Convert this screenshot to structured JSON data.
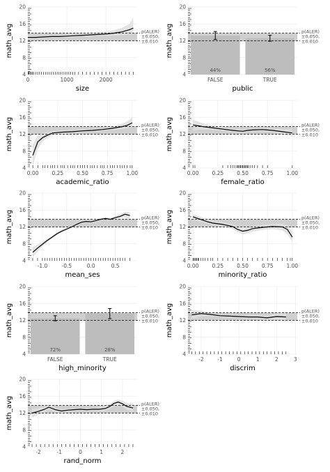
{
  "annotation": [
    "p(ALER)",
    "±0.050,",
    "±0.010"
  ],
  "band": {
    "lo": 12.0,
    "hi": 13.8,
    "ref": 13.0
  },
  "colors": {
    "band": "#c7c7c7",
    "ci": "#dedede",
    "bar": "#bdbdbd",
    "line": "#000000",
    "grid": "#ececec"
  },
  "chart_data": [
    {
      "type": "line",
      "id": "size",
      "xlabel": "size",
      "ylabel": "math_avg",
      "xlim": [
        0,
        2800
      ],
      "ylim": [
        4,
        20
      ],
      "xticks": [
        0,
        1000,
        2000
      ],
      "xticklabels": [
        "0",
        "1000",
        "2000"
      ],
      "yticks": [
        4,
        8,
        12,
        16,
        20
      ],
      "yticklabels": [
        "4",
        "8",
        "12",
        "16",
        "20"
      ],
      "x": [
        0,
        200,
        400,
        600,
        800,
        1000,
        1200,
        1400,
        1600,
        1800,
        2000,
        2200,
        2400,
        2600,
        2700
      ],
      "y": [
        12.8,
        12.8,
        12.9,
        13.0,
        13.0,
        13.1,
        13.2,
        13.3,
        13.4,
        13.5,
        13.6,
        13.8,
        14.1,
        14.6,
        15.0
      ],
      "ci_lo": [
        12.4,
        12.5,
        12.6,
        12.7,
        12.7,
        12.8,
        12.9,
        13.0,
        13.0,
        13.1,
        13.1,
        13.2,
        13.3,
        13.5,
        13.6
      ],
      "ci_hi": [
        13.3,
        13.2,
        13.2,
        13.3,
        13.3,
        13.4,
        13.5,
        13.6,
        13.8,
        13.9,
        14.1,
        14.5,
        15.0,
        16.0,
        17.5
      ],
      "rug": [
        10,
        30,
        60,
        90,
        120,
        150,
        200,
        250,
        300,
        350,
        400,
        450,
        500,
        550,
        600,
        650,
        700,
        750,
        800,
        850,
        900,
        950,
        1000,
        1050,
        1100,
        1150,
        1200,
        1300,
        1400,
        1500,
        1600,
        1700,
        1800,
        1900,
        2000,
        2100,
        2200,
        2300,
        2400,
        2500,
        2600,
        2700
      ]
    },
    {
      "type": "bar",
      "id": "public",
      "xlabel": "public",
      "ylabel": "math_avg",
      "ylim": [
        4,
        20
      ],
      "yticks": [
        4,
        8,
        12,
        16,
        20
      ],
      "yticklabels": [
        "4",
        "8",
        "12",
        "16",
        "20"
      ],
      "categories": [
        "FALSE",
        "TRUE"
      ],
      "values": [
        13.2,
        12.6
      ],
      "err_lo": [
        12.3,
        11.9
      ],
      "err_hi": [
        14.2,
        13.3
      ],
      "labels": [
        "44%",
        "56%"
      ]
    },
    {
      "type": "line",
      "id": "academic_ratio",
      "xlabel": "academic_ratio",
      "ylabel": "math_avg",
      "xlim": [
        -0.05,
        1.05
      ],
      "ylim": [
        4,
        20
      ],
      "xticks": [
        0,
        0.25,
        0.5,
        0.75,
        1
      ],
      "xticklabels": [
        "0.00",
        "0.25",
        "0.50",
        "0.75",
        "1.00"
      ],
      "yticks": [
        4,
        8,
        12,
        16,
        20
      ],
      "yticklabels": [
        "4",
        "8",
        "12",
        "16",
        "20"
      ],
      "x": [
        0.0,
        0.05,
        0.1,
        0.15,
        0.2,
        0.3,
        0.4,
        0.5,
        0.6,
        0.7,
        0.8,
        0.9,
        0.95,
        1.0
      ],
      "y": [
        7.0,
        10.2,
        11.2,
        11.8,
        12.3,
        12.5,
        12.6,
        12.8,
        12.9,
        13.1,
        13.4,
        13.8,
        14.1,
        14.7
      ],
      "ci_lo": [
        4.5,
        8.5,
        10.3,
        11.2,
        11.8,
        12.1,
        12.3,
        12.5,
        12.6,
        12.8,
        13.0,
        13.2,
        13.4,
        13.6
      ],
      "ci_hi": [
        9.5,
        11.8,
        12.3,
        12.5,
        12.8,
        12.9,
        13.0,
        13.1,
        13.2,
        13.4,
        13.8,
        14.5,
        15.0,
        16.0
      ],
      "rug": [
        0,
        0.05,
        0.1,
        0.12,
        0.15,
        0.18,
        0.2,
        0.22,
        0.25,
        0.28,
        0.3,
        0.32,
        0.35,
        0.38,
        0.4,
        0.42,
        0.45,
        0.48,
        0.5,
        0.52,
        0.55,
        0.58,
        0.6,
        0.62,
        0.65,
        0.68,
        0.7,
        0.72,
        0.75,
        0.78,
        0.8,
        0.82,
        0.85,
        0.88,
        0.9,
        0.92,
        0.95,
        0.98,
        1.0
      ]
    },
    {
      "type": "line",
      "id": "female_ratio",
      "xlabel": "female_ratio",
      "ylabel": "math_avg",
      "xlim": [
        -0.05,
        1.05
      ],
      "ylim": [
        4,
        20
      ],
      "xticks": [
        0,
        0.25,
        0.5,
        0.75,
        1
      ],
      "xticklabels": [
        "0.00",
        "0.25",
        "0.50",
        "0.75",
        "1.00"
      ],
      "yticks": [
        4,
        8,
        12,
        16,
        20
      ],
      "yticklabels": [
        "4",
        "8",
        "12",
        "16",
        "20"
      ],
      "x": [
        0.0,
        0.05,
        0.1,
        0.2,
        0.3,
        0.4,
        0.45,
        0.5,
        0.55,
        0.6,
        0.7,
        0.8,
        0.9,
        1.0
      ],
      "y": [
        14.2,
        14.0,
        13.8,
        13.5,
        13.2,
        12.9,
        12.8,
        12.7,
        12.9,
        13.0,
        13.1,
        12.9,
        12.6,
        12.3
      ],
      "ci_lo": [
        12.8,
        13.0,
        13.1,
        13.0,
        12.8,
        12.6,
        12.5,
        12.4,
        12.6,
        12.7,
        12.7,
        12.5,
        12.0,
        11.5
      ],
      "ci_hi": [
        15.5,
        15.0,
        14.6,
        14.0,
        13.6,
        13.2,
        13.1,
        13.0,
        13.2,
        13.3,
        13.5,
        13.3,
        13.2,
        13.2
      ],
      "rug": [
        0,
        0.02,
        0.3,
        0.35,
        0.38,
        0.4,
        0.42,
        0.44,
        0.45,
        0.46,
        0.47,
        0.48,
        0.49,
        0.5,
        0.51,
        0.52,
        0.53,
        0.54,
        0.55,
        0.56,
        0.58,
        0.6,
        0.62,
        0.65,
        0.7,
        0.75,
        1.0
      ]
    },
    {
      "type": "line",
      "id": "mean_ses",
      "xlabel": "mean_ses",
      "ylabel": "math_avg",
      "xlim": [
        -1.3,
        0.95
      ],
      "ylim": [
        4,
        20
      ],
      "xticks": [
        -1,
        -0.5,
        0,
        0.5
      ],
      "xticklabels": [
        "-1.0",
        "-0.5",
        "0.0",
        "0.5"
      ],
      "yticks": [
        4,
        8,
        12,
        16,
        20
      ],
      "yticklabels": [
        "4",
        "8",
        "12",
        "16",
        "20"
      ],
      "x": [
        -1.2,
        -1.1,
        -1.0,
        -0.9,
        -0.8,
        -0.7,
        -0.6,
        -0.5,
        -0.4,
        -0.3,
        -0.2,
        -0.1,
        0.0,
        0.1,
        0.2,
        0.3,
        0.4,
        0.5,
        0.6,
        0.7,
        0.8
      ],
      "y": [
        6.0,
        7.0,
        7.9,
        8.8,
        9.6,
        10.4,
        11.0,
        11.5,
        12.0,
        12.6,
        13.1,
        13.3,
        13.2,
        13.5,
        13.8,
        14.0,
        13.8,
        14.2,
        14.5,
        15.0,
        14.7
      ],
      "ci_lo": [
        4.8,
        6.2,
        7.4,
        8.4,
        9.3,
        10.1,
        10.7,
        11.2,
        11.7,
        12.3,
        12.8,
        13.0,
        12.9,
        13.2,
        13.5,
        13.7,
        13.5,
        13.8,
        14.0,
        14.3,
        13.8
      ],
      "ci_hi": [
        7.2,
        7.8,
        8.4,
        9.2,
        9.9,
        10.7,
        11.3,
        11.8,
        12.3,
        12.9,
        13.4,
        13.6,
        13.5,
        13.8,
        14.1,
        14.3,
        14.1,
        14.6,
        15.0,
        15.6,
        15.6
      ],
      "rug": [
        -1.2,
        -1.1,
        -1.0,
        -0.95,
        -0.9,
        -0.85,
        -0.8,
        -0.75,
        -0.7,
        -0.65,
        -0.6,
        -0.55,
        -0.5,
        -0.45,
        -0.4,
        -0.35,
        -0.3,
        -0.25,
        -0.2,
        -0.15,
        -0.1,
        -0.05,
        0.0,
        0.05,
        0.1,
        0.15,
        0.2,
        0.25,
        0.3,
        0.35,
        0.4,
        0.45,
        0.5,
        0.55,
        0.6,
        0.65,
        0.7,
        0.8
      ]
    },
    {
      "type": "line",
      "id": "minority_ratio",
      "xlabel": "minority_ratio",
      "ylabel": "math_avg",
      "xlim": [
        -0.05,
        1.05
      ],
      "ylim": [
        4,
        20
      ],
      "xticks": [
        0,
        0.25,
        0.5,
        0.75,
        1
      ],
      "xticklabels": [
        "0.00",
        "0.25",
        "0.50",
        "0.75",
        "1.00"
      ],
      "yticks": [
        4,
        8,
        12,
        16,
        20
      ],
      "yticklabels": [
        "4",
        "8",
        "12",
        "16",
        "20"
      ],
      "x": [
        0.0,
        0.05,
        0.1,
        0.15,
        0.2,
        0.3,
        0.4,
        0.45,
        0.5,
        0.55,
        0.6,
        0.7,
        0.8,
        0.9,
        0.95,
        1.0
      ],
      "y": [
        14.4,
        14.0,
        13.6,
        13.2,
        12.9,
        12.6,
        12.1,
        11.4,
        11.0,
        11.2,
        11.6,
        11.9,
        12.1,
        12.0,
        11.4,
        9.6
      ],
      "ci_lo": [
        13.6,
        13.4,
        13.1,
        12.8,
        12.5,
        12.2,
        11.5,
        10.8,
        10.2,
        10.5,
        10.9,
        11.3,
        11.5,
        11.2,
        10.3,
        8.5
      ],
      "ci_hi": [
        15.0,
        14.6,
        14.2,
        13.7,
        13.4,
        13.1,
        12.7,
        12.0,
        11.8,
        12.0,
        12.3,
        12.5,
        12.7,
        12.8,
        12.4,
        10.8
      ],
      "rug": [
        0,
        0.01,
        0.02,
        0.03,
        0.04,
        0.05,
        0.06,
        0.08,
        0.1,
        0.12,
        0.15,
        0.18,
        0.2,
        0.25,
        0.3,
        0.35,
        0.4,
        0.45,
        0.5,
        0.55,
        0.6,
        0.65,
        0.7,
        0.75,
        0.8,
        0.85,
        0.9,
        0.95,
        0.98,
        1.0
      ]
    },
    {
      "type": "bar",
      "id": "high_minority",
      "xlabel": "high_minority",
      "ylabel": "math_avg",
      "ylim": [
        4,
        20
      ],
      "yticks": [
        4,
        8,
        12,
        16,
        20
      ],
      "yticklabels": [
        "4",
        "8",
        "12",
        "16",
        "20"
      ],
      "categories": [
        "FALSE",
        "TRUE"
      ],
      "values": [
        12.5,
        13.6
      ],
      "err_lo": [
        11.9,
        12.4
      ],
      "err_hi": [
        13.1,
        14.8
      ],
      "labels": [
        "72%",
        "28%"
      ]
    },
    {
      "type": "line",
      "id": "discrim",
      "xlabel": "discrim",
      "ylabel": "math_avg",
      "xlim": [
        -2.7,
        3.1
      ],
      "ylim": [
        4,
        20
      ],
      "xticks": [
        -2,
        -1,
        0,
        1,
        2,
        3
      ],
      "xticklabels": [
        "-2",
        "-1",
        "0",
        "1",
        "2",
        "3"
      ],
      "yticks": [
        4,
        8,
        12,
        16,
        20
      ],
      "yticklabels": [
        "4",
        "8",
        "12",
        "16",
        "20"
      ],
      "x": [
        -2.5,
        -2.0,
        -1.5,
        -1.0,
        -0.5,
        0.0,
        0.5,
        1.0,
        1.5,
        2.0,
        2.5
      ],
      "y": [
        13.3,
        13.6,
        13.4,
        13.1,
        13.0,
        12.9,
        12.8,
        12.8,
        12.6,
        12.9,
        12.8
      ],
      "ci_lo": [
        12.3,
        12.9,
        13.0,
        12.8,
        12.7,
        12.6,
        12.5,
        12.4,
        12.1,
        12.2,
        11.6
      ],
      "ci_hi": [
        14.4,
        14.3,
        13.8,
        13.4,
        13.3,
        13.2,
        13.1,
        13.2,
        13.1,
        13.6,
        14.0
      ],
      "rug": [
        -2.5,
        -2.3,
        -2.1,
        -1.9,
        -1.7,
        -1.5,
        -1.3,
        -1.1,
        -0.9,
        -0.7,
        -0.5,
        -0.3,
        -0.1,
        0.1,
        0.3,
        0.5,
        0.7,
        0.9,
        1.1,
        1.3,
        1.5,
        1.7,
        1.9,
        2.1,
        2.3,
        2.5
      ]
    },
    {
      "type": "line",
      "id": "rand_norm",
      "xlabel": "rand_norm",
      "ylabel": "math_avg",
      "xlim": [
        -2.5,
        2.7
      ],
      "ylim": [
        4,
        20
      ],
      "xticks": [
        -2,
        -1,
        0,
        1,
        2
      ],
      "xticklabels": [
        "-2",
        "-1",
        "0",
        "1",
        "2"
      ],
      "yticks": [
        4,
        8,
        12,
        16,
        20
      ],
      "yticklabels": [
        "4",
        "8",
        "12",
        "16",
        "20"
      ],
      "x": [
        -2.3,
        -2.0,
        -1.7,
        -1.5,
        -1.2,
        -0.9,
        -0.6,
        -0.3,
        0.0,
        0.3,
        0.6,
        0.9,
        1.2,
        1.4,
        1.6,
        1.8,
        2.0,
        2.2,
        2.5
      ],
      "y": [
        12.0,
        12.4,
        12.9,
        13.4,
        12.8,
        12.5,
        12.7,
        12.8,
        12.9,
        12.8,
        12.9,
        12.9,
        13.1,
        13.6,
        14.3,
        14.6,
        14.2,
        13.6,
        13.2
      ],
      "ci_lo": [
        11.0,
        11.6,
        12.3,
        12.8,
        12.3,
        12.1,
        12.4,
        12.5,
        12.6,
        12.5,
        12.6,
        12.5,
        12.6,
        13.0,
        13.7,
        14.0,
        13.5,
        12.8,
        12.2
      ],
      "ci_hi": [
        13.0,
        13.2,
        13.5,
        14.0,
        13.3,
        12.9,
        13.0,
        13.1,
        13.2,
        13.1,
        13.2,
        13.3,
        13.6,
        14.2,
        14.9,
        15.2,
        14.9,
        14.4,
        14.2
      ],
      "rug": [
        -2.3,
        -2.1,
        -1.9,
        -1.7,
        -1.5,
        -1.3,
        -1.1,
        -0.9,
        -0.7,
        -0.5,
        -0.3,
        -0.1,
        0.1,
        0.3,
        0.5,
        0.7,
        0.9,
        1.1,
        1.3,
        1.5,
        1.7,
        1.9,
        2.1,
        2.3,
        2.5
      ]
    }
  ]
}
